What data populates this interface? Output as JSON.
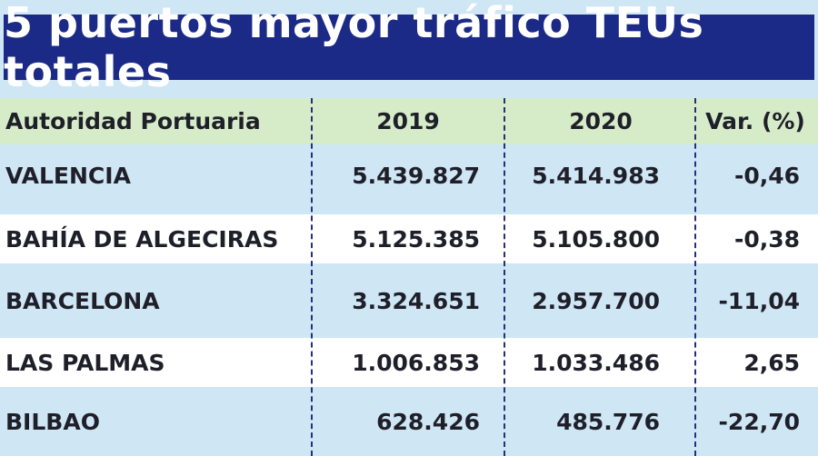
{
  "title": "5 puertos mayor tráfico TEUs totales",
  "chart_data": {
    "type": "table",
    "columns": [
      "Autoridad Portuaria",
      "2019",
      "2020",
      "Var. (%)"
    ],
    "rows": [
      [
        "VALENCIA",
        "5.439.827",
        "5.414.983",
        "-0,46"
      ],
      [
        "BAHÍA DE ALGECIRAS",
        "5.125.385",
        "5.105.800",
        "-0,38"
      ],
      [
        "BARCELONA",
        "3.324.651",
        "2.957.700",
        "-11,04"
      ],
      [
        "LAS PALMAS",
        "1.006.853",
        "1.033.486",
        "2,65"
      ],
      [
        "BILBAO",
        "628.426",
        "485.776",
        "-22,70"
      ]
    ]
  },
  "colors": {
    "title_background": "#1b2a86",
    "header_background": "#d6ecc8",
    "row_blue": "#cfe6f5",
    "row_white": "#ffffff",
    "divider": "#23307c"
  }
}
